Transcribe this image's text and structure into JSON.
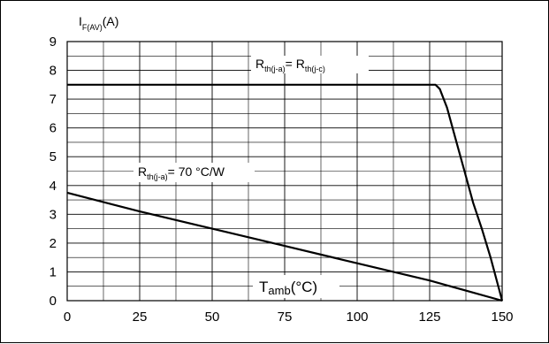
{
  "chart_data": {
    "type": "line",
    "x_ticks": [
      0,
      25,
      50,
      75,
      100,
      125,
      150
    ],
    "y_ticks": [
      0,
      1,
      2,
      3,
      4,
      5,
      6,
      7,
      8,
      9
    ],
    "xlim": [
      0,
      150
    ],
    "ylim": [
      0,
      9
    ],
    "grid": true,
    "xlabel": {
      "main": "T",
      "sub": "amb",
      "rest": "(°C)"
    },
    "ylabel": {
      "main": "I",
      "sub": "F(AV)",
      "rest": "(A)"
    },
    "series": [
      {
        "label": {
          "main": "R",
          "sub": "th(j-a)",
          "rest": "= R",
          "sub2": "th(j-c)"
        },
        "points": [
          [
            0,
            7.5
          ],
          [
            127,
            7.5
          ],
          [
            128.5,
            7.35
          ],
          [
            131,
            6.7
          ],
          [
            134,
            5.6
          ],
          [
            137,
            4.5
          ],
          [
            140,
            3.4
          ],
          [
            143,
            2.5
          ],
          [
            146,
            1.5
          ],
          [
            150,
            0
          ]
        ]
      },
      {
        "label": {
          "main": "R",
          "sub": "th(j-a)",
          "rest": "= 70 °C/W"
        },
        "points": [
          [
            0,
            3.75
          ],
          [
            25,
            3.1
          ],
          [
            50,
            2.5
          ],
          [
            75,
            1.9
          ],
          [
            100,
            1.3
          ],
          [
            125,
            0.7
          ],
          [
            150,
            0
          ]
        ]
      }
    ]
  }
}
